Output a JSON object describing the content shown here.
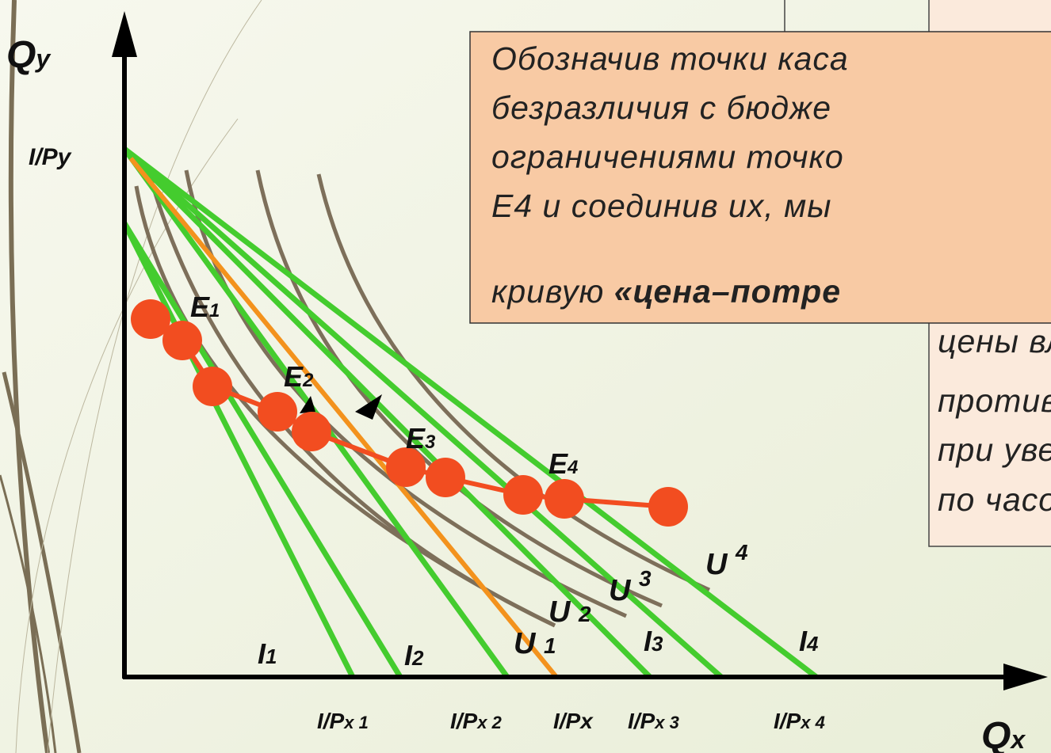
{
  "axes": {
    "y_label": {
      "main": "Q",
      "sub": "y"
    },
    "x_label": {
      "main": "Q",
      "sub": "x"
    },
    "y_intercept": "I/Py"
  },
  "points": [
    {
      "main": "E",
      "sub": "1"
    },
    {
      "main": "E",
      "sub": "2"
    },
    {
      "main": "E",
      "sub": "3"
    },
    {
      "main": "E",
      "sub": "4"
    }
  ],
  "budget_lines": [
    {
      "main": "I",
      "sub": "1"
    },
    {
      "main": "I",
      "sub": "2"
    },
    {
      "main": "I",
      "sub": "3"
    },
    {
      "main": "I",
      "sub": "4"
    }
  ],
  "indifference_curves": [
    {
      "main": "U",
      "sub": "1"
    },
    {
      "main": "U",
      "sub": "2"
    },
    {
      "main": "U",
      "sub": "3"
    },
    {
      "main": "U",
      "sub": "4"
    }
  ],
  "x_intercepts": [
    {
      "main": "I/P",
      "sub": "x 1"
    },
    {
      "main": "I/P",
      "sub": "x 2"
    },
    {
      "main": "I/Px",
      "sub": ""
    },
    {
      "main": "I/P",
      "sub": "x 3"
    },
    {
      "main": "I/P",
      "sub": "x 4"
    }
  ],
  "front_box": {
    "lines": [
      "Обозначив точки каса",
      "безразличия с бюдже",
      "ограничениями точко",
      "Е4 и соединив их, мы"
    ],
    "last_line": {
      "normal": "кривую ",
      "bold": "«цена–потре"
    }
  },
  "back_box": {
    "lines": [
      "цены вл п",
      "против час",
      "при увели",
      "по часово"
    ]
  }
}
